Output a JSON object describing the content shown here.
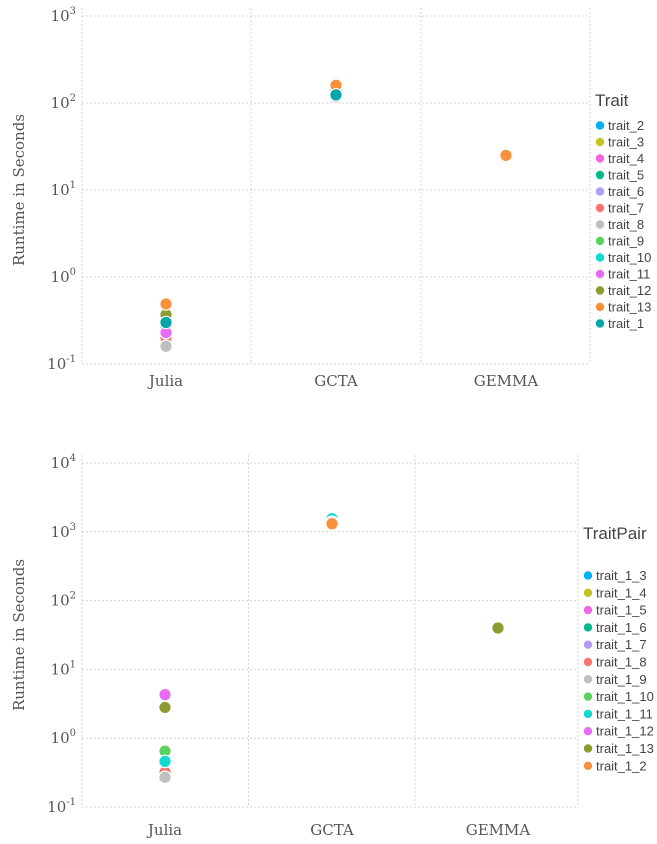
{
  "chart_data": [
    {
      "type": "scatter",
      "ylabel": "Runtime in Seconds",
      "yscale": "log",
      "ylim": [
        0.1,
        1000
      ],
      "y_ticks": [
        {
          "base": "10",
          "exp": "-1"
        },
        {
          "base": "10",
          "exp": "0"
        },
        {
          "base": "10",
          "exp": "1"
        },
        {
          "base": "10",
          "exp": "2"
        },
        {
          "base": "10",
          "exp": "3"
        }
      ],
      "categories": [
        "Julia",
        "GCTA",
        "GEMMA"
      ],
      "legend": {
        "title": "Trait",
        "position": "right"
      },
      "series": [
        {
          "name": "trait_2",
          "color": "#00b0f6",
          "values": [
            0.19,
            125,
            null
          ]
        },
        {
          "name": "trait_3",
          "color": "#c3c326",
          "values": [
            0.21,
            130,
            null
          ]
        },
        {
          "name": "trait_4",
          "color": "#f564e3",
          "values": [
            0.23,
            128,
            null
          ]
        },
        {
          "name": "trait_5",
          "color": "#00ba8e",
          "values": [
            0.18,
            122,
            null
          ]
        },
        {
          "name": "trait_6",
          "color": "#b19cf7",
          "values": [
            0.17,
            120,
            null
          ]
        },
        {
          "name": "trait_7",
          "color": "#f8766d",
          "values": [
            0.2,
            127,
            null
          ]
        },
        {
          "name": "trait_8",
          "color": "#c0c0c0",
          "values": [
            0.16,
            118,
            null
          ]
        },
        {
          "name": "trait_9",
          "color": "#5bd160",
          "values": [
            0.27,
            132,
            null
          ]
        },
        {
          "name": "trait_10",
          "color": "#10d9d0",
          "values": [
            0.33,
            135,
            null
          ]
        },
        {
          "name": "trait_11",
          "color": "#e76bf3",
          "values": [
            0.23,
            138,
            null
          ]
        },
        {
          "name": "trait_12",
          "color": "#8c9a2f",
          "values": [
            0.37,
            140,
            null
          ]
        },
        {
          "name": "trait_13",
          "color": "#f8913c",
          "values": [
            0.49,
            160,
            25
          ]
        },
        {
          "name": "trait_1",
          "color": "#00a5a6",
          "values": [
            0.3,
            124,
            null
          ]
        }
      ]
    },
    {
      "type": "scatter",
      "ylabel": "Runtime in Seconds",
      "yscale": "log",
      "ylim": [
        0.1,
        10000
      ],
      "y_ticks": [
        {
          "base": "10",
          "exp": "-1"
        },
        {
          "base": "10",
          "exp": "0"
        },
        {
          "base": "10",
          "exp": "1"
        },
        {
          "base": "10",
          "exp": "2"
        },
        {
          "base": "10",
          "exp": "3"
        },
        {
          "base": "10",
          "exp": "4"
        }
      ],
      "categories": [
        "Julia",
        "GCTA",
        "GEMMA"
      ],
      "legend": {
        "title": "TraitPair",
        "position": "right"
      },
      "series": [
        {
          "name": "trait_1_3",
          "color": "#00b0f6",
          "values": [
            0.28,
            1500,
            null
          ]
        },
        {
          "name": "trait_1_4",
          "color": "#c3c326",
          "values": [
            0.3,
            1350,
            null
          ]
        },
        {
          "name": "trait_1_5",
          "color": "#f564e3",
          "values": [
            0.31,
            1250,
            null
          ]
        },
        {
          "name": "trait_1_6",
          "color": "#00ba8e",
          "values": [
            0.29,
            1300,
            null
          ]
        },
        {
          "name": "trait_1_7",
          "color": "#b19cf7",
          "values": [
            0.3,
            1400,
            null
          ]
        },
        {
          "name": "trait_1_8",
          "color": "#f8766d",
          "values": [
            0.32,
            1280,
            null
          ]
        },
        {
          "name": "trait_1_9",
          "color": "#c0c0c0",
          "values": [
            0.27,
            1450,
            null
          ]
        },
        {
          "name": "trait_1_10",
          "color": "#5bd160",
          "values": [
            0.65,
            1330,
            null
          ]
        },
        {
          "name": "trait_1_11",
          "color": "#10d9d0",
          "values": [
            0.46,
            1550,
            null
          ]
        },
        {
          "name": "trait_1_12",
          "color": "#e76bf3",
          "values": [
            4.3,
            1380,
            null
          ]
        },
        {
          "name": "trait_1_13",
          "color": "#8c9a2f",
          "values": [
            2.8,
            1320,
            40
          ]
        },
        {
          "name": "trait_1_2",
          "color": "#f8913c",
          "values": [
            null,
            1310,
            null
          ]
        }
      ]
    }
  ]
}
